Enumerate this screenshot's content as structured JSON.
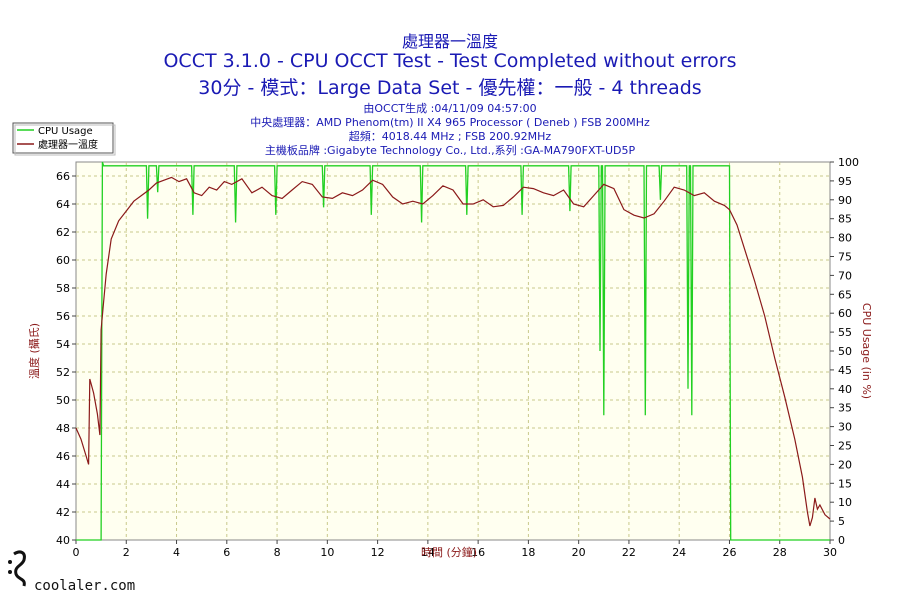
{
  "header": {
    "line1": "處理器一溫度",
    "line2": "OCCT 3.1.0 - CPU OCCT Test - Test Completed without errors",
    "line3": "30分 - 模式：Large Data Set - 優先權：一般 - 4 threads",
    "info": [
      "由OCCT生成 :04/11/09 04:57:00",
      "中央處理器：AMD Phenom(tm) II X4 965 Processor ( Deneb ) FSB 200MHz",
      "超頻：4018.44 MHz ; FSB 200.92MHz",
      "主機板品牌 :Gigabyte Technology Co., Ltd.,系列 :GA-MA790FXT-UD5P"
    ]
  },
  "watermark": "coolaler.com",
  "colors": {
    "temp": "#8b1a1a",
    "cpu": "#22d022",
    "plot_bg": "#fffff0",
    "grid": "#c9c98c",
    "title": "#1a1ab4"
  },
  "chart_data": {
    "type": "line",
    "xlabel": "時間 (分鐘)",
    "ylabel": "溫度 (攝氏)",
    "y2label": "CPU Usage (in %)",
    "xlim": [
      0,
      30
    ],
    "ylim": [
      40,
      67
    ],
    "y2lim": [
      0,
      100
    ],
    "x_ticks": [
      0,
      2,
      4,
      6,
      8,
      10,
      12,
      14,
      16,
      18,
      20,
      22,
      24,
      26,
      28,
      30
    ],
    "y_ticks": [
      40,
      42,
      44,
      46,
      48,
      50,
      52,
      54,
      56,
      58,
      60,
      62,
      64,
      66
    ],
    "y2_ticks": [
      0,
      5,
      10,
      15,
      20,
      25,
      30,
      35,
      40,
      45,
      50,
      55,
      60,
      65,
      70,
      75,
      80,
      85,
      90,
      95,
      100
    ],
    "grid": true,
    "legend": "top-left",
    "series": [
      {
        "name": "CPU Usage",
        "axis": "right",
        "points": [
          [
            0,
            0
          ],
          [
            1.0,
            0
          ],
          [
            1.05,
            100
          ],
          [
            1.1,
            99
          ],
          [
            2.8,
            99
          ],
          [
            2.85,
            85
          ],
          [
            2.9,
            99
          ],
          [
            3.2,
            99
          ],
          [
            3.25,
            92
          ],
          [
            3.3,
            99
          ],
          [
            4.6,
            99
          ],
          [
            4.65,
            86
          ],
          [
            4.7,
            99
          ],
          [
            6.3,
            99
          ],
          [
            6.35,
            84
          ],
          [
            6.4,
            99
          ],
          [
            7.9,
            99
          ],
          [
            7.95,
            86
          ],
          [
            8.0,
            99
          ],
          [
            9.8,
            99
          ],
          [
            9.85,
            88
          ],
          [
            9.9,
            99
          ],
          [
            11.7,
            99
          ],
          [
            11.75,
            86
          ],
          [
            11.8,
            99
          ],
          [
            13.7,
            99
          ],
          [
            13.75,
            84
          ],
          [
            13.8,
            99
          ],
          [
            15.5,
            99
          ],
          [
            15.55,
            86
          ],
          [
            15.6,
            99
          ],
          [
            17.7,
            99
          ],
          [
            17.75,
            86
          ],
          [
            17.8,
            99
          ],
          [
            19.6,
            99
          ],
          [
            19.65,
            87
          ],
          [
            19.7,
            99
          ],
          [
            20.8,
            99
          ],
          [
            20.85,
            50
          ],
          [
            20.9,
            99
          ],
          [
            20.95,
            99
          ],
          [
            21.0,
            33
          ],
          [
            21.05,
            99
          ],
          [
            22.6,
            99
          ],
          [
            22.65,
            33
          ],
          [
            22.7,
            99
          ],
          [
            23.2,
            99
          ],
          [
            23.25,
            90
          ],
          [
            23.3,
            99
          ],
          [
            24.3,
            99
          ],
          [
            24.35,
            40
          ],
          [
            24.4,
            99
          ],
          [
            24.45,
            99
          ],
          [
            24.5,
            33
          ],
          [
            24.55,
            99
          ],
          [
            26.0,
            99
          ],
          [
            26.05,
            0
          ],
          [
            26.1,
            0
          ],
          [
            30,
            0
          ]
        ]
      },
      {
        "name": "處理器一溫度",
        "axis": "left",
        "points": [
          [
            0,
            48
          ],
          [
            0.2,
            47.2
          ],
          [
            0.4,
            46
          ],
          [
            0.5,
            45.4
          ],
          [
            0.55,
            51.5
          ],
          [
            0.7,
            50.5
          ],
          [
            0.85,
            49
          ],
          [
            0.95,
            47.5
          ],
          [
            1.0,
            55
          ],
          [
            1.1,
            57
          ],
          [
            1.2,
            59
          ],
          [
            1.4,
            61.5
          ],
          [
            1.7,
            62.8
          ],
          [
            2.0,
            63.5
          ],
          [
            2.3,
            64.2
          ],
          [
            2.6,
            64.6
          ],
          [
            2.9,
            65.0
          ],
          [
            3.2,
            65.5
          ],
          [
            3.5,
            65.7
          ],
          [
            3.8,
            65.9
          ],
          [
            4.1,
            65.6
          ],
          [
            4.4,
            65.8
          ],
          [
            4.7,
            64.8
          ],
          [
            5.0,
            64.6
          ],
          [
            5.3,
            65.2
          ],
          [
            5.6,
            65.0
          ],
          [
            5.9,
            65.6
          ],
          [
            6.2,
            65.4
          ],
          [
            6.6,
            65.8
          ],
          [
            7.0,
            64.8
          ],
          [
            7.4,
            65.2
          ],
          [
            7.8,
            64.6
          ],
          [
            8.2,
            64.4
          ],
          [
            8.6,
            65.0
          ],
          [
            9.0,
            65.6
          ],
          [
            9.4,
            65.4
          ],
          [
            9.8,
            64.5
          ],
          [
            10.2,
            64.4
          ],
          [
            10.6,
            64.8
          ],
          [
            11.0,
            64.6
          ],
          [
            11.4,
            65.0
          ],
          [
            11.8,
            65.7
          ],
          [
            12.2,
            65.4
          ],
          [
            12.6,
            64.5
          ],
          [
            13.0,
            64.0
          ],
          [
            13.4,
            64.2
          ],
          [
            13.8,
            64.0
          ],
          [
            14.2,
            64.6
          ],
          [
            14.6,
            65.3
          ],
          [
            15.0,
            65.0
          ],
          [
            15.4,
            64.0
          ],
          [
            15.8,
            64.0
          ],
          [
            16.2,
            64.3
          ],
          [
            16.6,
            63.8
          ],
          [
            17.0,
            63.9
          ],
          [
            17.4,
            64.5
          ],
          [
            17.8,
            65.2
          ],
          [
            18.2,
            65.1
          ],
          [
            18.6,
            64.8
          ],
          [
            19.0,
            64.6
          ],
          [
            19.4,
            65.0
          ],
          [
            19.8,
            64.0
          ],
          [
            20.2,
            63.8
          ],
          [
            20.6,
            64.6
          ],
          [
            21.0,
            65.4
          ],
          [
            21.4,
            65.1
          ],
          [
            21.8,
            63.6
          ],
          [
            22.2,
            63.2
          ],
          [
            22.6,
            63.0
          ],
          [
            23.0,
            63.3
          ],
          [
            23.4,
            64.2
          ],
          [
            23.8,
            65.2
          ],
          [
            24.2,
            65.0
          ],
          [
            24.6,
            64.6
          ],
          [
            25.0,
            64.8
          ],
          [
            25.4,
            64.2
          ],
          [
            25.8,
            63.9
          ],
          [
            26.0,
            63.6
          ],
          [
            26.3,
            62.5
          ],
          [
            26.6,
            60.8
          ],
          [
            27.0,
            58.5
          ],
          [
            27.4,
            56.0
          ],
          [
            27.8,
            53.0
          ],
          [
            28.2,
            50.2
          ],
          [
            28.6,
            47.2
          ],
          [
            28.9,
            44.5
          ],
          [
            29.1,
            42.0
          ],
          [
            29.2,
            41.0
          ],
          [
            29.3,
            41.6
          ],
          [
            29.4,
            43.0
          ],
          [
            29.5,
            42.2
          ],
          [
            29.6,
            42.5
          ],
          [
            29.8,
            41.8
          ],
          [
            30.0,
            41.5
          ]
        ]
      }
    ]
  }
}
